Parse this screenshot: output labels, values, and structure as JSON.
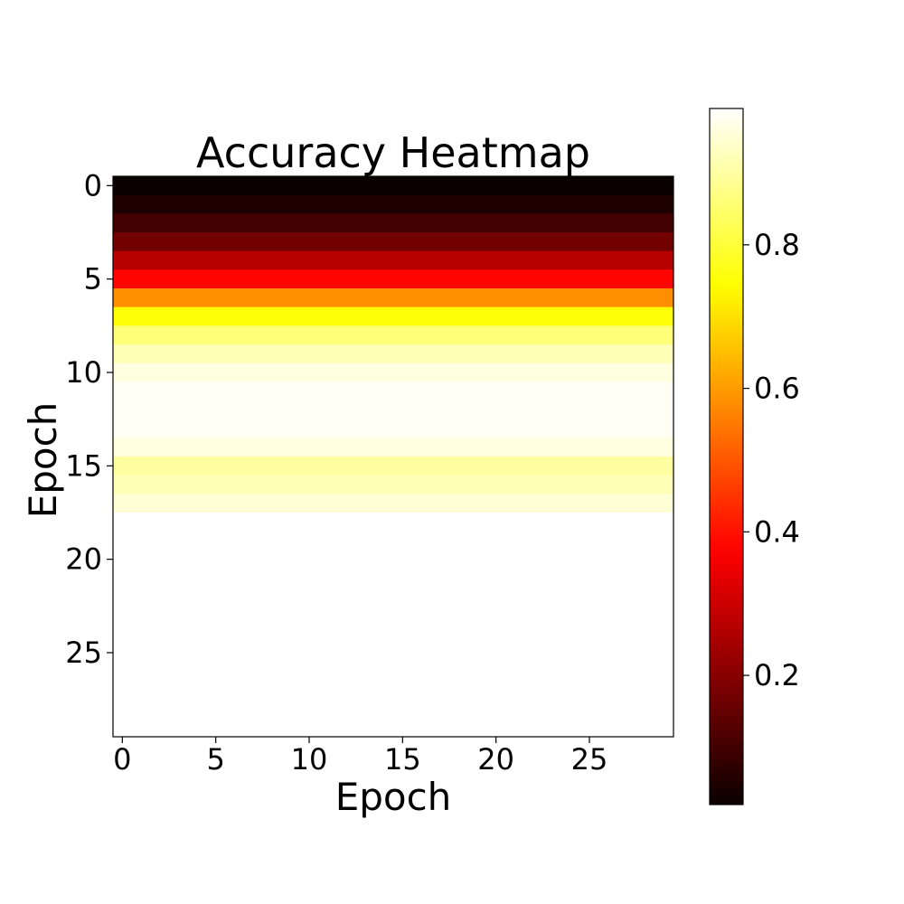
{
  "chart_data": {
    "type": "heatmap",
    "title": "Accuracy Heatmap",
    "xlabel": "Epoch",
    "ylabel": "Epoch",
    "x_ticks": [
      "0",
      "5",
      "10",
      "15",
      "20",
      "25"
    ],
    "y_ticks": [
      "0",
      "5",
      "10",
      "15",
      "20",
      "25"
    ],
    "xlim": [
      -0.5,
      29.5
    ],
    "ylim": [
      -0.5,
      29.5
    ],
    "y_axis_inverted": true,
    "colormap": "hot",
    "grid": false,
    "colorbar": {
      "range": [
        0.02,
        0.99
      ],
      "ticks": [
        "0.2",
        "0.4",
        "0.6",
        "0.8"
      ]
    },
    "n_columns": 30,
    "row_values": [
      0.02,
      0.05,
      0.1,
      0.17,
      0.27,
      0.38,
      0.58,
      0.75,
      0.86,
      0.92,
      0.96,
      0.98,
      0.98,
      0.98,
      0.96,
      0.9,
      0.92,
      0.95,
      0.99,
      0.99,
      0.99,
      0.99,
      0.99,
      0.99,
      0.99,
      0.99,
      0.99,
      0.99,
      0.99,
      0.99
    ]
  }
}
